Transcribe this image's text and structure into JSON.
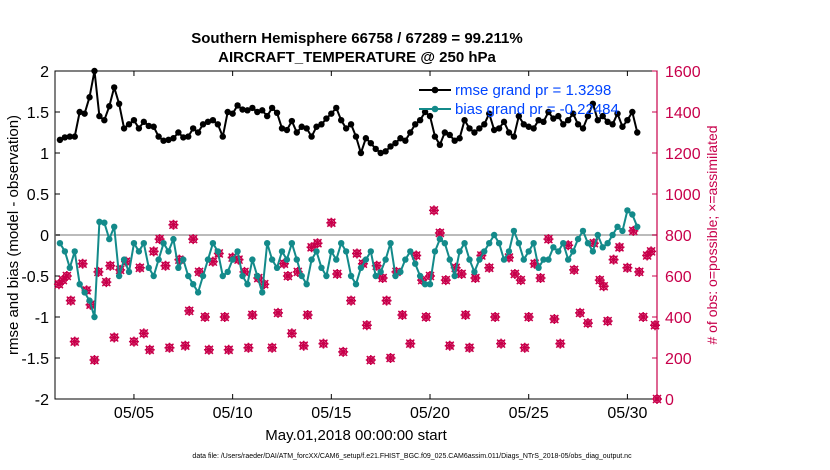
{
  "figure": {
    "title_line1": "Southern Hemisphere 66758 / 67289 = 99.211%",
    "title_line2": "AIRCRAFT_TEMPERATURE @ 250 hPa",
    "footer": "data file: /Users/raeder/DAI/ATM_forcXX/CAM6_setup/f.e21.FHIST_BGC.f09_025.CAM6assim.011/Diags_NTrS_2018-05/obs_diag_output.nc"
  },
  "colors": {
    "rmse": "#000000",
    "bias": "#138a8a",
    "obs_possible": "#c8004b",
    "obs_assimilated": "#c8004b",
    "zero_line": "#bbbbbb",
    "right_axis": "#c8004b",
    "legend_text": "#0044ff"
  },
  "chart_data": {
    "type": "line",
    "xlabel": "May.01,2018 00:00:00 start",
    "ylabel_left": "rmse and bias (model - observation)",
    "ylabel_right": "# of obs: o=possible; ×=assimilated",
    "xlim": [
      1.0,
      31.5
    ],
    "ylim_left": [
      -2,
      2
    ],
    "ylim_right": [
      0,
      1600
    ],
    "x_ticks": [
      5,
      10,
      15,
      20,
      25,
      30
    ],
    "x_tick_labels": [
      "05/05",
      "05/10",
      "05/15",
      "05/20",
      "05/25",
      "05/30"
    ],
    "y_ticks_left": [
      -2,
      -1.5,
      -1,
      -0.5,
      0,
      0.5,
      1,
      1.5,
      2
    ],
    "y_tick_labels_left": [
      "-2",
      "-1.5",
      "-1",
      "-0.5",
      "0",
      "0.5",
      "1",
      "1.5",
      "2"
    ],
    "y_ticks_right": [
      0,
      200,
      400,
      600,
      800,
      1000,
      1200,
      1400,
      1600
    ],
    "y_tick_labels_right": [
      "0",
      "200",
      "400",
      "600",
      "800",
      "1000",
      "1200",
      "1400",
      "1600"
    ],
    "grid": false,
    "legend_placement": "top-right",
    "series": [
      {
        "name": "rmse grand pr = 1.3298",
        "axis": "left",
        "values": [
          1.16,
          1.19,
          1.2,
          1.2,
          1.5,
          1.48,
          1.68,
          2.0,
          1.45,
          1.4,
          1.57,
          1.8,
          1.6,
          1.3,
          1.35,
          1.4,
          1.3,
          1.38,
          1.33,
          1.32,
          1.2,
          1.15,
          1.16,
          1.18,
          1.25,
          1.19,
          1.2,
          1.3,
          1.25,
          1.35,
          1.38,
          1.4,
          1.35,
          1.2,
          1.5,
          1.48,
          1.58,
          1.53,
          1.52,
          1.55,
          1.5,
          1.52,
          1.45,
          1.55,
          1.49,
          1.3,
          1.28,
          1.39,
          1.25,
          1.32,
          1.3,
          1.2,
          1.32,
          1.35,
          1.42,
          1.48,
          1.55,
          1.4,
          1.3,
          1.35,
          1.2,
          1.0,
          1.18,
          1.12,
          1.05,
          1.0,
          1.02,
          1.08,
          1.12,
          1.18,
          1.15,
          1.25,
          1.35,
          1.4,
          1.5,
          1.45,
          1.2,
          1.1,
          1.25,
          1.22,
          1.15,
          1.18,
          1.4,
          1.3,
          1.25,
          1.3,
          1.35,
          1.48,
          1.28,
          1.3,
          1.38,
          1.25,
          1.2,
          1.45,
          1.35,
          1.32,
          1.3,
          1.4,
          1.38,
          1.5,
          1.42,
          1.45,
          1.35,
          1.4,
          1.48,
          1.35,
          1.3,
          1.45,
          1.6,
          1.4,
          1.45,
          1.38,
          1.35,
          1.48,
          1.32,
          1.4,
          1.5,
          1.25
        ]
      },
      {
        "name": "bias grand pr = -0.22484",
        "axis": "left",
        "values": [
          -0.1,
          -0.2,
          -0.4,
          -0.2,
          -0.6,
          -0.7,
          -0.8,
          -1.0,
          0.16,
          0.15,
          -0.05,
          0.1,
          -0.5,
          -0.3,
          -0.45,
          -0.1,
          -0.2,
          -0.1,
          -0.4,
          -0.5,
          -0.3,
          -0.1,
          -0.2,
          -0.05,
          -0.4,
          -0.3,
          -0.5,
          -0.6,
          -0.7,
          -0.5,
          -0.3,
          -0.1,
          -0.2,
          -0.5,
          -0.45,
          -0.3,
          -0.2,
          -0.5,
          -0.6,
          -0.3,
          -0.5,
          -0.7,
          -0.1,
          -0.3,
          -0.4,
          -0.2,
          -0.3,
          -0.1,
          -0.3,
          -0.5,
          -0.6,
          -0.3,
          -0.2,
          -0.4,
          -0.5,
          -0.2,
          -0.3,
          -0.1,
          -0.2,
          -0.5,
          -0.6,
          -0.4,
          -0.3,
          -0.2,
          -0.5,
          -0.45,
          -0.3,
          -0.1,
          -0.5,
          -0.45,
          -0.3,
          -0.2,
          -0.35,
          -0.5,
          -0.6,
          -0.6,
          -0.2,
          -0.05,
          -0.1,
          -0.3,
          -0.5,
          -0.2,
          -0.1,
          -0.3,
          -0.45,
          -0.3,
          -0.2,
          -0.1,
          0.0,
          -0.1,
          -0.3,
          -0.2,
          0.05,
          -0.1,
          -0.3,
          -0.2,
          -0.1,
          -0.4,
          -0.3,
          -0.3,
          -0.15,
          -0.2,
          -0.1,
          -0.3,
          -0.2,
          -0.05,
          0.05,
          -0.1,
          -0.2,
          0.0,
          -0.15,
          -0.1,
          0.0,
          0.1,
          0.05,
          0.3,
          0.25,
          0.1
        ]
      },
      {
        "name": "obs possible",
        "axis": "right",
        "marker": "o",
        "points": [
          [
            1.2,
            560
          ],
          [
            1.4,
            580
          ],
          [
            1.6,
            600
          ],
          [
            1.8,
            480
          ],
          [
            2.0,
            280
          ],
          [
            2.4,
            660
          ],
          [
            2.6,
            530
          ],
          [
            2.8,
            460
          ],
          [
            3.0,
            190
          ],
          [
            3.2,
            620
          ],
          [
            3.6,
            570
          ],
          [
            3.8,
            650
          ],
          [
            4.0,
            300
          ],
          [
            4.3,
            630
          ],
          [
            4.6,
            670
          ],
          [
            5.0,
            280
          ],
          [
            5.3,
            640
          ],
          [
            5.5,
            320
          ],
          [
            5.8,
            240
          ],
          [
            6.0,
            720
          ],
          [
            6.3,
            780
          ],
          [
            6.6,
            650
          ],
          [
            6.8,
            250
          ],
          [
            7.0,
            850
          ],
          [
            7.3,
            680
          ],
          [
            7.6,
            260
          ],
          [
            7.8,
            430
          ],
          [
            8.0,
            780
          ],
          [
            8.3,
            620
          ],
          [
            8.6,
            400
          ],
          [
            8.8,
            240
          ],
          [
            9.0,
            670
          ],
          [
            9.3,
            710
          ],
          [
            9.6,
            400
          ],
          [
            9.8,
            240
          ],
          [
            10.0,
            690
          ],
          [
            10.3,
            680
          ],
          [
            10.6,
            620
          ],
          [
            10.8,
            250
          ],
          [
            11.0,
            410
          ],
          [
            11.3,
            590
          ],
          [
            11.6,
            560
          ],
          [
            12.0,
            250
          ],
          [
            12.3,
            420
          ],
          [
            12.6,
            660
          ],
          [
            12.8,
            600
          ],
          [
            13.0,
            320
          ],
          [
            13.3,
            620
          ],
          [
            13.6,
            260
          ],
          [
            13.8,
            410
          ],
          [
            14.0,
            740
          ],
          [
            14.3,
            760
          ],
          [
            14.6,
            270
          ],
          [
            15.0,
            860
          ],
          [
            15.3,
            610
          ],
          [
            15.6,
            230
          ],
          [
            16.0,
            480
          ],
          [
            16.3,
            710
          ],
          [
            16.6,
            660
          ],
          [
            16.8,
            360
          ],
          [
            17.0,
            190
          ],
          [
            17.3,
            650
          ],
          [
            17.6,
            590
          ],
          [
            17.8,
            480
          ],
          [
            18.0,
            200
          ],
          [
            18.3,
            620
          ],
          [
            18.6,
            410
          ],
          [
            19.0,
            270
          ],
          [
            19.3,
            700
          ],
          [
            19.6,
            580
          ],
          [
            19.8,
            400
          ],
          [
            20.0,
            600
          ],
          [
            20.2,
            920
          ],
          [
            20.5,
            810
          ],
          [
            20.8,
            580
          ],
          [
            21.0,
            260
          ],
          [
            21.3,
            640
          ],
          [
            21.6,
            610
          ],
          [
            21.8,
            410
          ],
          [
            22.0,
            250
          ],
          [
            22.3,
            590
          ],
          [
            22.6,
            700
          ],
          [
            23.0,
            640
          ],
          [
            23.3,
            400
          ],
          [
            23.6,
            270
          ],
          [
            24.0,
            690
          ],
          [
            24.3,
            610
          ],
          [
            24.6,
            580
          ],
          [
            24.8,
            250
          ],
          [
            25.0,
            400
          ],
          [
            25.3,
            660
          ],
          [
            25.6,
            590
          ],
          [
            26.0,
            780
          ],
          [
            26.3,
            390
          ],
          [
            26.6,
            270
          ],
          [
            27.0,
            750
          ],
          [
            27.3,
            630
          ],
          [
            27.6,
            420
          ],
          [
            28.0,
            370
          ],
          [
            28.3,
            760
          ],
          [
            28.6,
            580
          ],
          [
            28.8,
            550
          ],
          [
            29.0,
            380
          ],
          [
            29.3,
            680
          ],
          [
            29.6,
            740
          ],
          [
            30.0,
            640
          ],
          [
            30.3,
            820
          ],
          [
            30.6,
            620
          ],
          [
            30.8,
            400
          ],
          [
            31.0,
            700
          ],
          [
            31.2,
            720
          ],
          [
            31.4,
            360
          ],
          [
            31.5,
            0
          ]
        ]
      },
      {
        "name": "obs assimilated",
        "axis": "right",
        "marker": "x",
        "points": [
          [
            1.2,
            560
          ],
          [
            1.4,
            580
          ],
          [
            1.6,
            600
          ],
          [
            1.8,
            480
          ],
          [
            2.0,
            280
          ],
          [
            2.4,
            660
          ],
          [
            2.6,
            530
          ],
          [
            2.8,
            460
          ],
          [
            3.0,
            190
          ],
          [
            3.2,
            620
          ],
          [
            3.6,
            570
          ],
          [
            3.8,
            650
          ],
          [
            4.0,
            300
          ],
          [
            4.3,
            630
          ],
          [
            4.6,
            670
          ],
          [
            5.0,
            280
          ],
          [
            5.3,
            640
          ],
          [
            5.5,
            320
          ],
          [
            5.8,
            240
          ],
          [
            6.0,
            720
          ],
          [
            6.3,
            780
          ],
          [
            6.6,
            650
          ],
          [
            6.8,
            250
          ],
          [
            7.0,
            850
          ],
          [
            7.3,
            680
          ],
          [
            7.6,
            260
          ],
          [
            7.8,
            430
          ],
          [
            8.0,
            780
          ],
          [
            8.3,
            620
          ],
          [
            8.6,
            400
          ],
          [
            8.8,
            240
          ],
          [
            9.0,
            670
          ],
          [
            9.3,
            710
          ],
          [
            9.6,
            400
          ],
          [
            9.8,
            240
          ],
          [
            10.0,
            690
          ],
          [
            10.3,
            680
          ],
          [
            10.6,
            620
          ],
          [
            10.8,
            250
          ],
          [
            11.0,
            410
          ],
          [
            11.3,
            590
          ],
          [
            11.6,
            560
          ],
          [
            12.0,
            250
          ],
          [
            12.3,
            420
          ],
          [
            12.6,
            660
          ],
          [
            12.8,
            600
          ],
          [
            13.0,
            320
          ],
          [
            13.3,
            620
          ],
          [
            13.6,
            260
          ],
          [
            13.8,
            410
          ],
          [
            14.0,
            740
          ],
          [
            14.3,
            760
          ],
          [
            14.6,
            270
          ],
          [
            15.0,
            860
          ],
          [
            15.3,
            610
          ],
          [
            15.6,
            230
          ],
          [
            16.0,
            480
          ],
          [
            16.3,
            710
          ],
          [
            16.6,
            660
          ],
          [
            16.8,
            360
          ],
          [
            17.0,
            190
          ],
          [
            17.3,
            650
          ],
          [
            17.6,
            590
          ],
          [
            17.8,
            480
          ],
          [
            18.0,
            200
          ],
          [
            18.3,
            620
          ],
          [
            18.6,
            410
          ],
          [
            19.0,
            270
          ],
          [
            19.3,
            700
          ],
          [
            19.6,
            580
          ],
          [
            19.8,
            400
          ],
          [
            20.0,
            600
          ],
          [
            20.2,
            920
          ],
          [
            20.5,
            810
          ],
          [
            20.8,
            580
          ],
          [
            21.0,
            260
          ],
          [
            21.3,
            640
          ],
          [
            21.6,
            610
          ],
          [
            21.8,
            410
          ],
          [
            22.0,
            250
          ],
          [
            22.3,
            590
          ],
          [
            22.6,
            700
          ],
          [
            23.0,
            640
          ],
          [
            23.3,
            400
          ],
          [
            23.6,
            270
          ],
          [
            24.0,
            690
          ],
          [
            24.3,
            610
          ],
          [
            24.6,
            580
          ],
          [
            24.8,
            250
          ],
          [
            25.0,
            400
          ],
          [
            25.3,
            660
          ],
          [
            25.6,
            590
          ],
          [
            26.0,
            780
          ],
          [
            26.3,
            390
          ],
          [
            26.6,
            270
          ],
          [
            27.0,
            750
          ],
          [
            27.3,
            630
          ],
          [
            27.6,
            420
          ],
          [
            28.0,
            370
          ],
          [
            28.3,
            760
          ],
          [
            28.6,
            580
          ],
          [
            28.8,
            550
          ],
          [
            29.0,
            380
          ],
          [
            29.3,
            680
          ],
          [
            29.6,
            740
          ],
          [
            30.0,
            640
          ],
          [
            30.3,
            820
          ],
          [
            30.6,
            620
          ],
          [
            30.8,
            400
          ],
          [
            31.0,
            700
          ],
          [
            31.2,
            720
          ],
          [
            31.4,
            360
          ],
          [
            31.5,
            0
          ]
        ]
      }
    ]
  }
}
